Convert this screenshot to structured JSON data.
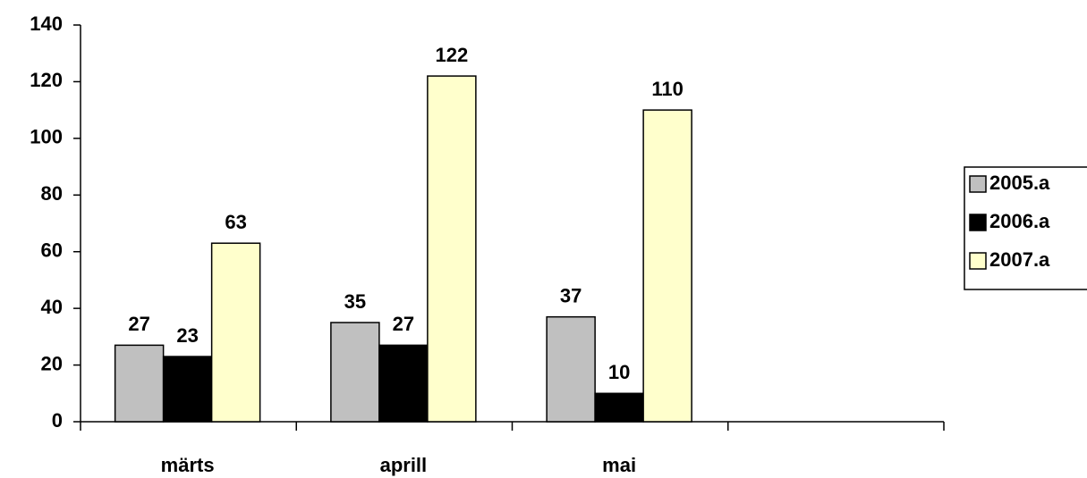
{
  "chart_data": {
    "type": "bar",
    "categories": [
      "märts",
      "aprill",
      "mai",
      null
    ],
    "series": [
      {
        "name": "2005.a",
        "color": "#c0c0c0",
        "values": [
          27,
          35,
          37,
          null
        ]
      },
      {
        "name": "2006.a",
        "color": "#000000",
        "values": [
          23,
          27,
          10,
          null
        ]
      },
      {
        "name": "2007.a",
        "color": "#ffffcc",
        "values": [
          63,
          122,
          110,
          null
        ]
      }
    ],
    "ylim": [
      0,
      140
    ],
    "yticks": [
      0,
      20,
      40,
      60,
      80,
      100,
      120,
      140
    ],
    "grid": false,
    "legend": "right"
  }
}
